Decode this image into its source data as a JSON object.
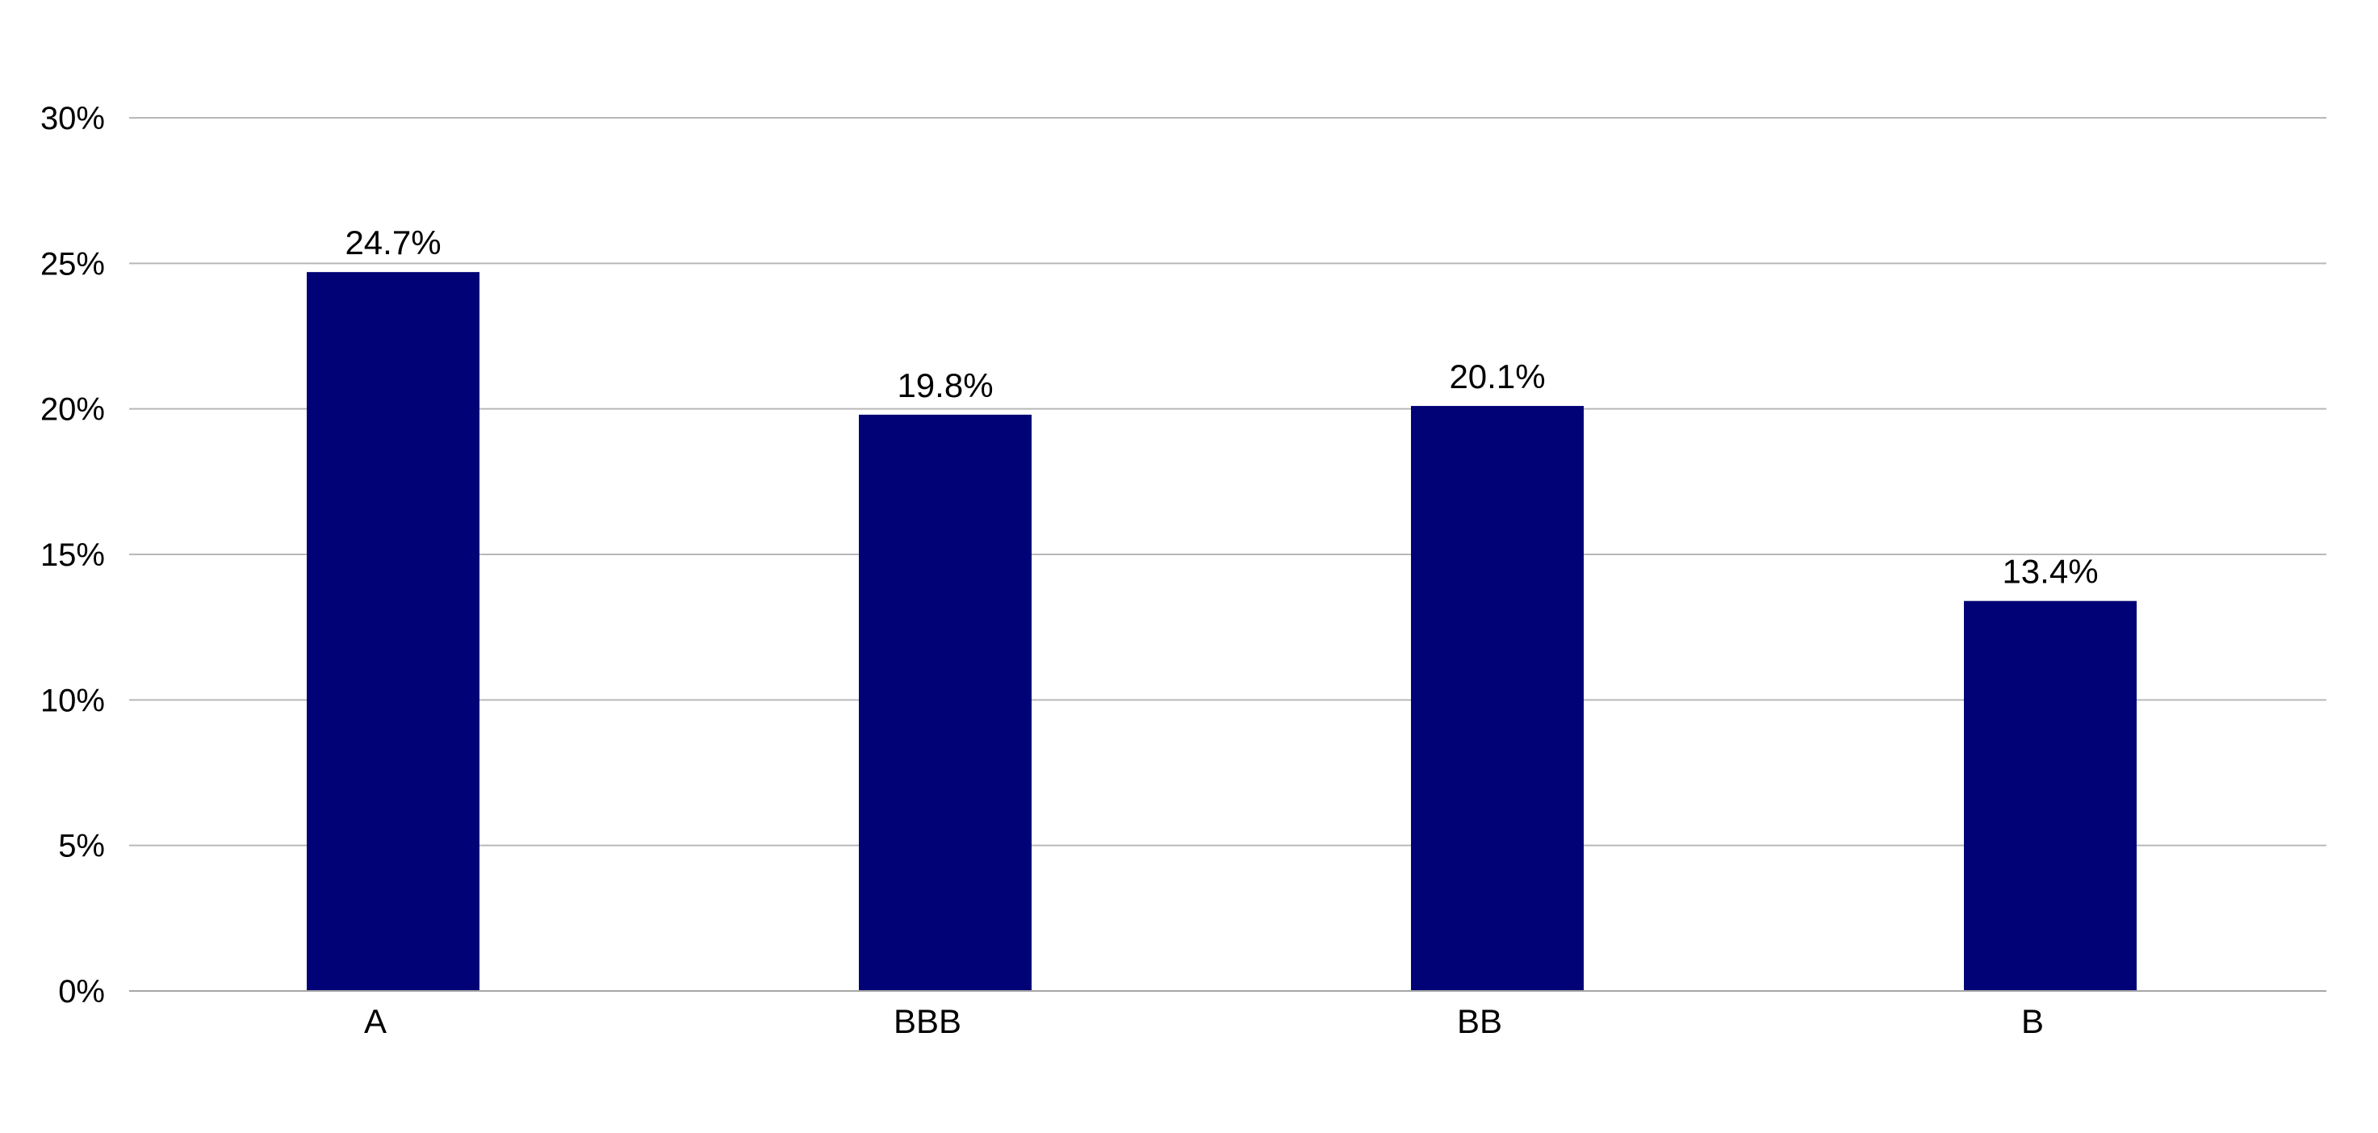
{
  "chart_data": {
    "type": "bar",
    "categories": [
      "A",
      "BBB",
      "BB",
      "B"
    ],
    "values": [
      24.7,
      19.8,
      20.1,
      13.4
    ],
    "data_labels": [
      "24.7%",
      "19.8%",
      "20.1%",
      "13.4%"
    ],
    "ylim": [
      0,
      30
    ],
    "yticks": [
      0,
      5,
      10,
      15,
      20,
      25,
      30
    ],
    "ytick_labels": [
      "0%",
      "5%",
      "10%",
      "15%",
      "20%",
      "25%",
      "30%"
    ],
    "grid": true,
    "bar_color": "#000275",
    "title": "",
    "xlabel": "",
    "ylabel": ""
  }
}
